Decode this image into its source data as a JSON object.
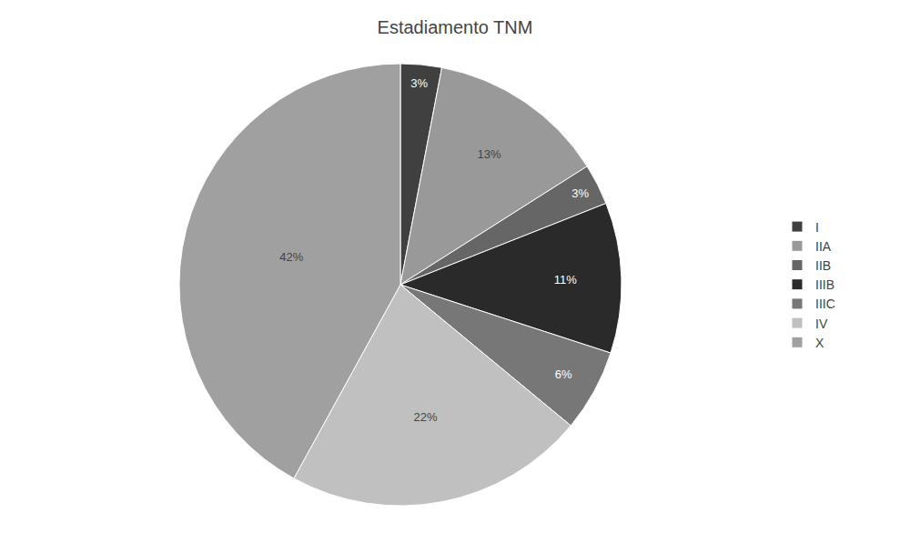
{
  "chart_data": {
    "type": "pie",
    "title": "Estadiamento TNM",
    "categories": [
      "I",
      "IIA",
      "IIB",
      "IIIB",
      "IIIC",
      "IV",
      "X"
    ],
    "values": [
      3,
      13,
      3,
      11,
      6,
      22,
      42
    ],
    "value_labels": [
      "3%",
      "13%",
      "3%",
      "11%",
      "6%",
      "22%",
      "42%"
    ],
    "colors": [
      "#404040",
      "#999999",
      "#666666",
      "#2a2a2a",
      "#777777",
      "#c0c0c0",
      "#a0a0a0"
    ],
    "data_labels": true,
    "legend": "right"
  }
}
